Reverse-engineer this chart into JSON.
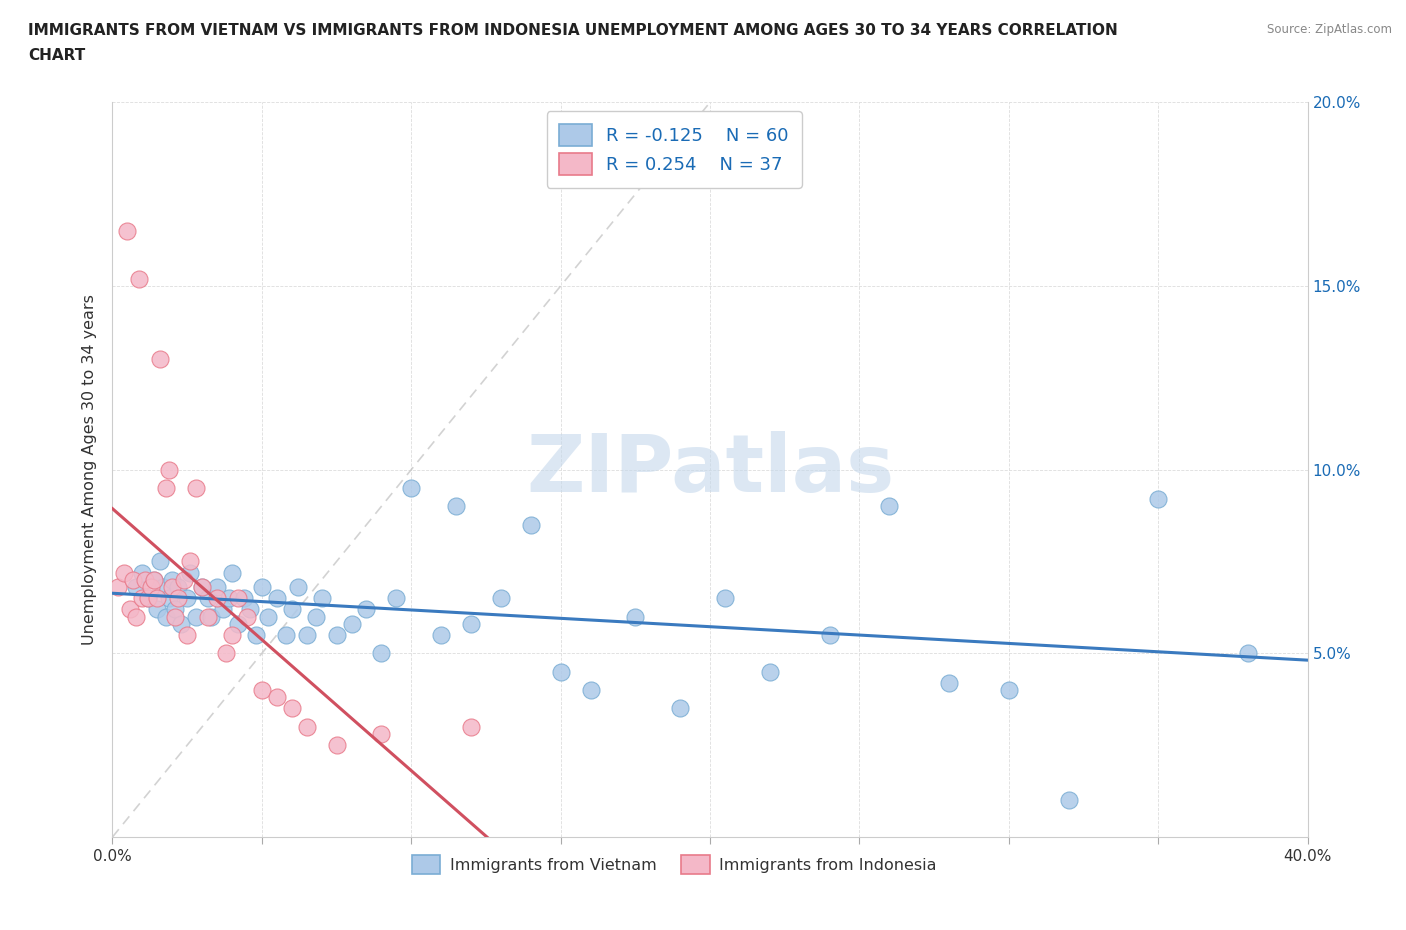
{
  "title": "IMMIGRANTS FROM VIETNAM VS IMMIGRANTS FROM INDONESIA UNEMPLOYMENT AMONG AGES 30 TO 34 YEARS CORRELATION\nCHART",
  "source": "Source: ZipAtlas.com",
  "ylabel": "Unemployment Among Ages 30 to 34 years",
  "xlim": [
    0.0,
    0.4
  ],
  "ylim": [
    0.0,
    0.2
  ],
  "xticks": [
    0.0,
    0.05,
    0.1,
    0.15,
    0.2,
    0.25,
    0.3,
    0.35,
    0.4
  ],
  "yticks": [
    0.0,
    0.05,
    0.1,
    0.15,
    0.2
  ],
  "vietnam_color": "#adc9e8",
  "vietnam_edge": "#7aadd4",
  "indonesia_color": "#f4b8c8",
  "indonesia_edge": "#e87a8a",
  "vietnam_R": -0.125,
  "vietnam_N": 60,
  "indonesia_R": 0.254,
  "indonesia_N": 37,
  "legend_R_color": "#1a6bb5",
  "vietnam_line_color": "#3a7abf",
  "indonesia_line_color": "#d05060",
  "watermark": "ZIPatlas",
  "watermark_color": "#c5d8ec",
  "background_color": "#ffffff",
  "vietnam_x": [
    0.008,
    0.01,
    0.012,
    0.014,
    0.015,
    0.016,
    0.017,
    0.018,
    0.019,
    0.02,
    0.021,
    0.022,
    0.023,
    0.025,
    0.026,
    0.028,
    0.03,
    0.032,
    0.033,
    0.035,
    0.037,
    0.039,
    0.04,
    0.042,
    0.044,
    0.046,
    0.048,
    0.05,
    0.052,
    0.055,
    0.058,
    0.06,
    0.062,
    0.065,
    0.068,
    0.07,
    0.075,
    0.08,
    0.085,
    0.09,
    0.095,
    0.1,
    0.11,
    0.115,
    0.12,
    0.13,
    0.14,
    0.15,
    0.16,
    0.175,
    0.19,
    0.205,
    0.22,
    0.24,
    0.26,
    0.28,
    0.3,
    0.32,
    0.35,
    0.38
  ],
  "vietnam_y": [
    0.068,
    0.072,
    0.065,
    0.07,
    0.062,
    0.075,
    0.068,
    0.06,
    0.065,
    0.07,
    0.062,
    0.068,
    0.058,
    0.065,
    0.072,
    0.06,
    0.068,
    0.065,
    0.06,
    0.068,
    0.062,
    0.065,
    0.072,
    0.058,
    0.065,
    0.062,
    0.055,
    0.068,
    0.06,
    0.065,
    0.055,
    0.062,
    0.068,
    0.055,
    0.06,
    0.065,
    0.055,
    0.058,
    0.062,
    0.05,
    0.065,
    0.095,
    0.055,
    0.09,
    0.058,
    0.065,
    0.085,
    0.045,
    0.04,
    0.06,
    0.035,
    0.065,
    0.045,
    0.055,
    0.09,
    0.042,
    0.04,
    0.01,
    0.092,
    0.05
  ],
  "indonesia_x": [
    0.002,
    0.004,
    0.005,
    0.006,
    0.007,
    0.008,
    0.009,
    0.01,
    0.011,
    0.012,
    0.013,
    0.014,
    0.015,
    0.016,
    0.018,
    0.019,
    0.02,
    0.021,
    0.022,
    0.024,
    0.025,
    0.026,
    0.028,
    0.03,
    0.032,
    0.035,
    0.038,
    0.04,
    0.042,
    0.045,
    0.05,
    0.055,
    0.06,
    0.065,
    0.075,
    0.09,
    0.12
  ],
  "indonesia_y": [
    0.068,
    0.072,
    0.165,
    0.062,
    0.07,
    0.06,
    0.152,
    0.065,
    0.07,
    0.065,
    0.068,
    0.07,
    0.065,
    0.13,
    0.095,
    0.1,
    0.068,
    0.06,
    0.065,
    0.07,
    0.055,
    0.075,
    0.095,
    0.068,
    0.06,
    0.065,
    0.05,
    0.055,
    0.065,
    0.06,
    0.04,
    0.038,
    0.035,
    0.03,
    0.025,
    0.028,
    0.03
  ]
}
